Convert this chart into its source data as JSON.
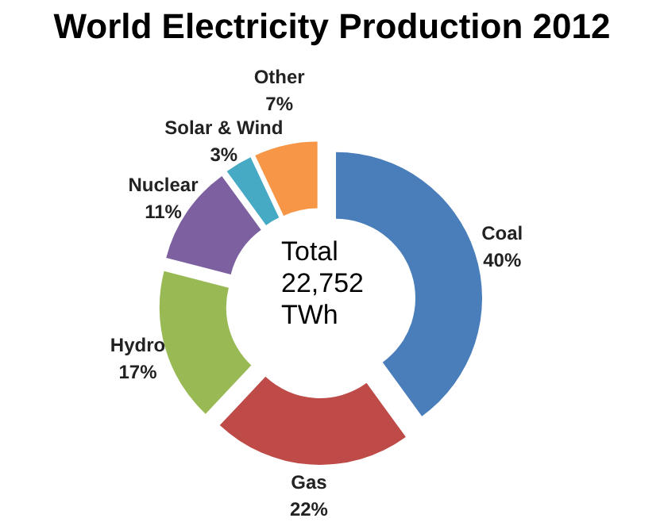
{
  "chart_data": {
    "type": "donut",
    "title": "World Electricity Production 2012",
    "categories": [
      "Coal",
      "Gas",
      "Hydro",
      "Nuclear",
      "Solar & Wind",
      "Other"
    ],
    "values": [
      40,
      22,
      17,
      11,
      3,
      7
    ],
    "colors": [
      "#4a7ebb",
      "#be4b48",
      "#98b954",
      "#7d60a0",
      "#46aac5",
      "#f79646"
    ],
    "value_labels": [
      "40%",
      "22%",
      "17%",
      "11%",
      "3%",
      "7%"
    ],
    "annotations": [
      "Total 22,752 TWh"
    ],
    "legend": false
  }
}
